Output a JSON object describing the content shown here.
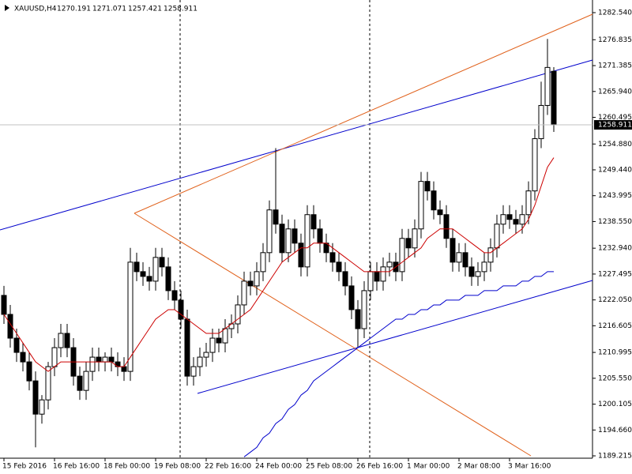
{
  "chart_data": {
    "type": "candlestick",
    "title": "XAUUSD,H4",
    "categories": [
      "15 Feb 2016",
      null,
      null,
      null,
      null,
      null,
      null,
      null,
      "16 Feb 16:00",
      null,
      null,
      null,
      null,
      null,
      null,
      null,
      "18 Feb 00:00",
      null,
      null,
      null,
      null,
      null,
      null,
      null,
      "19 Feb 08:00",
      null,
      null,
      null,
      null,
      null,
      null,
      null,
      "22 Feb 16:00",
      null,
      null,
      null,
      null,
      null,
      null,
      null,
      "24 Feb 00:00",
      null,
      null,
      null,
      null,
      null,
      null,
      null,
      "25 Feb 08:00",
      null,
      null,
      null,
      null,
      null,
      null,
      null,
      "26 Feb 16:00",
      null,
      null,
      null,
      null,
      null,
      null,
      null,
      "1 Mar 00:00",
      null,
      null,
      null,
      null,
      null,
      null,
      null,
      "2 Mar 08:00",
      null,
      null,
      null,
      null,
      null,
      null,
      null,
      "3 Mar 16:00",
      null,
      null,
      null,
      null,
      null,
      null,
      null
    ],
    "open": [
      1223,
      1219,
      1214,
      1211,
      1209,
      1205,
      1198,
      1201,
      1208,
      1212,
      1215,
      1212,
      1206,
      1203,
      1207,
      1210,
      1209,
      1210,
      1209,
      1208,
      1207,
      1230,
      1228,
      1227,
      1226,
      1231,
      1229,
      1224,
      1222,
      1218,
      1206,
      1208,
      1210,
      1211,
      1214,
      1213,
      1216,
      1217,
      1221,
      1226,
      1225,
      1228,
      1232,
      1241,
      1238,
      1232,
      1237,
      1234,
      1229,
      1240,
      1237,
      1234,
      1232,
      1230,
      1228,
      1225,
      1220,
      1216,
      1224,
      1228,
      1226,
      1229,
      1230,
      1228,
      1235,
      1233,
      1237,
      1247,
      1245,
      1241,
      1240,
      1235,
      1230,
      1232,
      1229,
      1227,
      1228,
      1230,
      1233,
      1238,
      1240,
      1239,
      1238,
      1240,
      1245,
      1256,
      1263,
      1270.191
    ],
    "high": [
      1225,
      1221,
      1216,
      1213,
      1211,
      1207,
      1202,
      1209,
      1214,
      1217,
      1217,
      1214,
      1208,
      1209,
      1212,
      1212,
      1211,
      1212,
      1211,
      1210,
      1233,
      1232,
      1230,
      1229,
      1233,
      1233,
      1231,
      1226,
      1224,
      1220,
      1210,
      1212,
      1213,
      1216,
      1216,
      1218,
      1219,
      1223,
      1228,
      1228,
      1230,
      1234,
      1243,
      1254,
      1240,
      1239,
      1239,
      1236,
      1242,
      1242,
      1239,
      1236,
      1234,
      1232,
      1230,
      1227,
      1222,
      1226,
      1230,
      1230,
      1231,
      1232,
      1232,
      1237,
      1237,
      1239,
      1249,
      1249,
      1247,
      1243,
      1242,
      1237,
      1234,
      1234,
      1231,
      1230,
      1232,
      1235,
      1240,
      1242,
      1242,
      1241,
      1242,
      1247,
      1258,
      1268,
      1277,
      1271.071
    ],
    "low": [
      1217,
      1212,
      1209,
      1207,
      1203,
      1191,
      1196,
      1199,
      1206,
      1210,
      1210,
      1204,
      1201,
      1201,
      1205,
      1207,
      1207,
      1207,
      1206,
      1205,
      1205,
      1226,
      1225,
      1224,
      1224,
      1227,
      1222,
      1220,
      1216,
      1204,
      1204,
      1206,
      1208,
      1209,
      1211,
      1211,
      1214,
      1215,
      1219,
      1223,
      1223,
      1226,
      1230,
      1236,
      1230,
      1230,
      1232,
      1227,
      1227,
      1235,
      1232,
      1230,
      1228,
      1226,
      1223,
      1218,
      1212,
      1214,
      1222,
      1224,
      1224,
      1227,
      1226,
      1226,
      1231,
      1231,
      1235,
      1243,
      1239,
      1238,
      1233,
      1228,
      1228,
      1227,
      1225,
      1225,
      1226,
      1228,
      1231,
      1236,
      1237,
      1236,
      1236,
      1238,
      1243,
      1254,
      1261,
      1257.421
    ],
    "close": [
      1219,
      1214,
      1211,
      1209,
      1205,
      1198,
      1201,
      1208,
      1212,
      1215,
      1212,
      1206,
      1203,
      1207,
      1210,
      1209,
      1210,
      1209,
      1208,
      1207,
      1230,
      1228,
      1227,
      1226,
      1231,
      1229,
      1224,
      1222,
      1218,
      1206,
      1208,
      1210,
      1211,
      1214,
      1213,
      1216,
      1217,
      1221,
      1226,
      1225,
      1228,
      1232,
      1241,
      1238,
      1232,
      1237,
      1234,
      1229,
      1240,
      1237,
      1234,
      1232,
      1230,
      1228,
      1225,
      1220,
      1216,
      1224,
      1228,
      1226,
      1229,
      1230,
      1228,
      1235,
      1233,
      1237,
      1247,
      1245,
      1241,
      1240,
      1235,
      1230,
      1232,
      1229,
      1227,
      1228,
      1230,
      1233,
      1238,
      1240,
      1239,
      1238,
      1240,
      1245,
      1256,
      1263,
      1271,
      1258.911
    ],
    "up_color": "#ffffff",
    "down_color": "#000000",
    "lines": [
      {
        "color": "#cc0000",
        "values": [
          1219,
          1217,
          1215,
          1213,
          1211,
          1209,
          1208,
          1207,
          1208,
          1209,
          1209,
          1209,
          1209,
          1209,
          1209,
          1209,
          1209,
          1209,
          1208,
          1208,
          1210,
          1212,
          1214,
          1216,
          1218,
          1219,
          1220,
          1220,
          1219,
          1218,
          1217,
          1216,
          1215,
          1215,
          1215,
          1216,
          1217,
          1218,
          1219,
          1220,
          1222,
          1224,
          1226,
          1228,
          1230,
          1231,
          1232,
          1233,
          1233,
          1234,
          1234,
          1234,
          1233,
          1232,
          1231,
          1230,
          1229,
          1228,
          1228,
          1228,
          1228,
          1228,
          1229,
          1230,
          1231,
          1232,
          1233,
          1235,
          1236,
          1237,
          1237,
          1237,
          1236,
          1235,
          1234,
          1233,
          1232,
          1232,
          1233,
          1234,
          1235,
          1236,
          1237,
          1239,
          1242,
          1246,
          1250,
          1252
        ]
      },
      {
        "color": "#0000cc",
        "values": [
          null,
          null,
          null,
          null,
          null,
          null,
          null,
          null,
          null,
          null,
          null,
          null,
          null,
          null,
          null,
          null,
          null,
          null,
          null,
          null,
          null,
          null,
          null,
          null,
          null,
          null,
          null,
          null,
          null,
          null,
          null,
          null,
          null,
          null,
          null,
          null,
          null,
          null,
          1189,
          1190,
          1191,
          1193,
          1194,
          1196,
          1197,
          1199,
          1200,
          1202,
          1203,
          1205,
          1206,
          1207,
          1208,
          1209,
          1210,
          1211,
          1212,
          1213,
          1214,
          1215,
          1216,
          1217,
          1218,
          1218,
          1219,
          1219,
          1220,
          1220,
          1221,
          1221,
          1222,
          1222,
          1222,
          1223,
          1223,
          1223,
          1224,
          1224,
          1224,
          1225,
          1225,
          1225,
          1226,
          1226,
          1227,
          1227,
          1228,
          1228
        ]
      }
    ],
    "ylim": [
      1188.72,
      1285.2
    ],
    "yticks": [
      {
        "value": 1282.54,
        "label": "1282.540"
      },
      1276.835,
      1271.385,
      {
        "value": 1265.94,
        "label": "1265.940"
      },
      1260.495,
      {
        "value": 1254.88,
        "label": "1254.880"
      },
      {
        "value": 1249.44,
        "label": "1249.440"
      },
      1243.995,
      {
        "value": 1238.55,
        "label": "1238.550"
      },
      {
        "value": 1232.94,
        "label": "1232.940"
      },
      1227.495,
      {
        "value": 1222.05,
        "label": "1222.050"
      },
      1216.605,
      1210.995,
      {
        "value": 1205.55,
        "label": "1205.550"
      },
      1200.105,
      {
        "value": 1194.66,
        "label": "1194.660"
      },
      1189.215
    ]
  }
}
